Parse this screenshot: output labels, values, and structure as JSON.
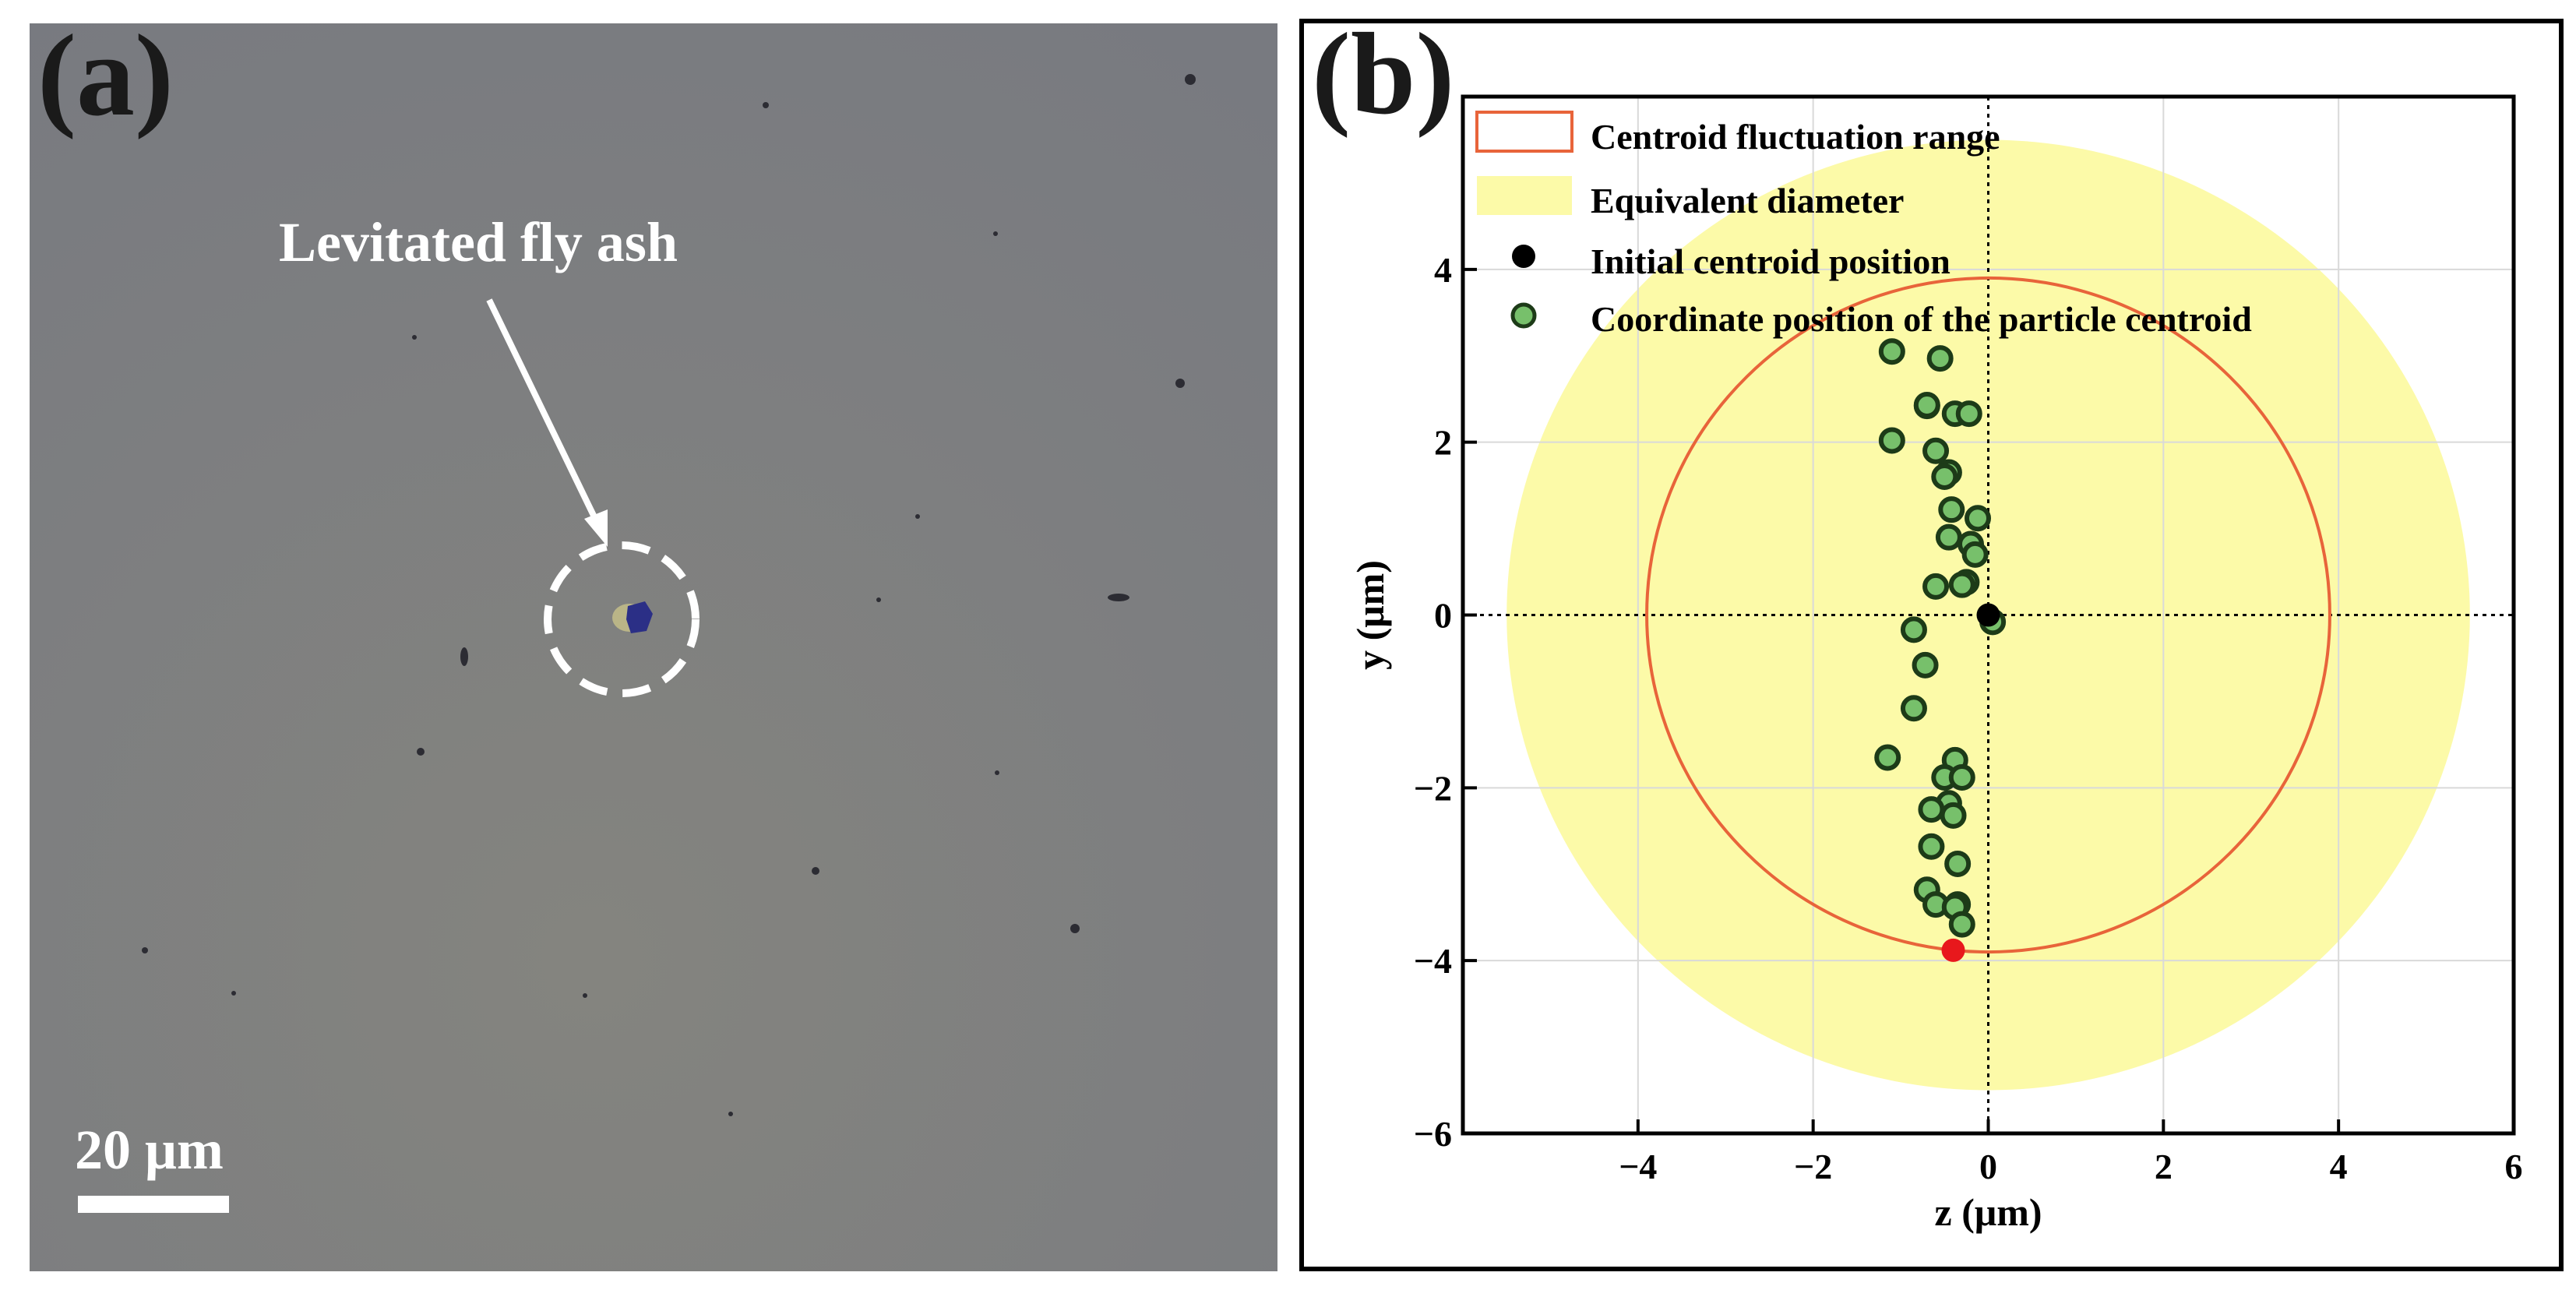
{
  "panel_a": {
    "label": "(a)",
    "annotation": "Levitated fly ash",
    "scale_bar_label": "20 μm"
  },
  "panel_b": {
    "label": "(b)"
  },
  "chart_data": {
    "type": "scatter",
    "title": "",
    "xlabel": "z (μm)",
    "ylabel": "y (μm)",
    "xlim": [
      -6,
      6
    ],
    "ylim": [
      -6,
      6
    ],
    "xticks": [
      -4,
      -2,
      0,
      2,
      4,
      6
    ],
    "yticks": [
      -6,
      -4,
      -2,
      0,
      2,
      4
    ],
    "xtick_labels": [
      "−4",
      "−2",
      "0",
      "2",
      "4",
      "6"
    ],
    "ytick_labels": [
      "−6",
      "−4",
      "−2",
      "0",
      "2",
      "4"
    ],
    "grid": true,
    "legend_position": "top-left",
    "legend": [
      {
        "key": "fluct",
        "label": "Centroid fluctuation range"
      },
      {
        "key": "equiv",
        "label": "Equivalent diameter"
      },
      {
        "key": "initial",
        "label": "Initial centroid position"
      },
      {
        "key": "coords",
        "label": "Coordinate position of the  particle centroid"
      }
    ],
    "centroid_fluctuation_radius": 3.9,
    "equivalent_diameter_radius": 5.5,
    "initial_centroid": {
      "z": 0,
      "y": 0
    },
    "highlight_point": {
      "z": -0.4,
      "y": -3.88
    },
    "points": [
      {
        "z": -1.1,
        "y": 3.05
      },
      {
        "z": -0.55,
        "y": 2.97
      },
      {
        "z": -0.7,
        "y": 2.42
      },
      {
        "z": -0.7,
        "y": 2.43
      },
      {
        "z": -0.38,
        "y": 2.33
      },
      {
        "z": -0.22,
        "y": 2.33
      },
      {
        "z": -1.1,
        "y": 2.02
      },
      {
        "z": -0.6,
        "y": 1.9
      },
      {
        "z": -0.45,
        "y": 1.65
      },
      {
        "z": -0.5,
        "y": 1.6
      },
      {
        "z": -0.42,
        "y": 1.22
      },
      {
        "z": -0.12,
        "y": 1.12
      },
      {
        "z": -0.45,
        "y": 0.9
      },
      {
        "z": -0.2,
        "y": 0.82
      },
      {
        "z": -0.15,
        "y": 0.7
      },
      {
        "z": -0.25,
        "y": 0.38
      },
      {
        "z": -0.3,
        "y": 0.35
      },
      {
        "z": -0.6,
        "y": 0.33
      },
      {
        "z": 0.05,
        "y": -0.08
      },
      {
        "z": -0.85,
        "y": -0.17
      },
      {
        "z": -0.72,
        "y": -0.58
      },
      {
        "z": -0.85,
        "y": -1.08
      },
      {
        "z": -1.15,
        "y": -1.65
      },
      {
        "z": -0.38,
        "y": -1.68
      },
      {
        "z": -0.5,
        "y": -1.88
      },
      {
        "z": -0.3,
        "y": -1.88
      },
      {
        "z": -0.45,
        "y": -2.18
      },
      {
        "z": -0.65,
        "y": -2.25
      },
      {
        "z": -0.4,
        "y": -2.32
      },
      {
        "z": -0.65,
        "y": -2.68
      },
      {
        "z": -0.35,
        "y": -2.88
      },
      {
        "z": -0.7,
        "y": -3.18
      },
      {
        "z": -0.6,
        "y": -3.35
      },
      {
        "z": -0.35,
        "y": -3.35
      },
      {
        "z": -0.38,
        "y": -3.38
      },
      {
        "z": -0.3,
        "y": -3.58
      }
    ],
    "colors": {
      "fluctuation_ring": "#e8643a",
      "equivalent_fill": "#fcfaa8",
      "initial_point": "#000000",
      "point_fill": "#77c06b",
      "point_edge": "#1d3b18",
      "highlight_point": "#e8181c"
    }
  }
}
